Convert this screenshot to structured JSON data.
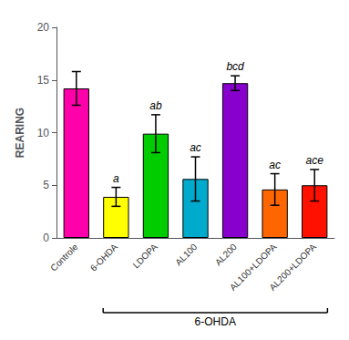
{
  "chart_data": {
    "type": "bar",
    "categories": [
      "Controle",
      "6-OHDA",
      "LDOPA",
      "AL100",
      "AL200",
      "AL100+LDOPA",
      "AL200+LDOPA"
    ],
    "values": [
      14.2,
      3.9,
      9.9,
      5.6,
      14.7,
      4.6,
      5.0
    ],
    "errors": [
      1.6,
      0.9,
      1.8,
      2.1,
      0.7,
      1.5,
      1.5
    ],
    "colors": [
      "#FF00AA",
      "#FFFF00",
      "#00CC00",
      "#00AACC",
      "#8800CC",
      "#FF6600",
      "#FF1100"
    ],
    "significance": [
      null,
      "a",
      "ab",
      "ac",
      "bcd",
      "ac",
      "ace"
    ],
    "ylabel": "REARING",
    "ylim": [
      0,
      20
    ],
    "yticks": [
      0,
      5,
      10,
      15,
      20
    ],
    "grid": false,
    "bracket_label": "6-OHDA",
    "bracket_categories": [
      "6-OHDA",
      "AL200+LDOPA"
    ]
  }
}
